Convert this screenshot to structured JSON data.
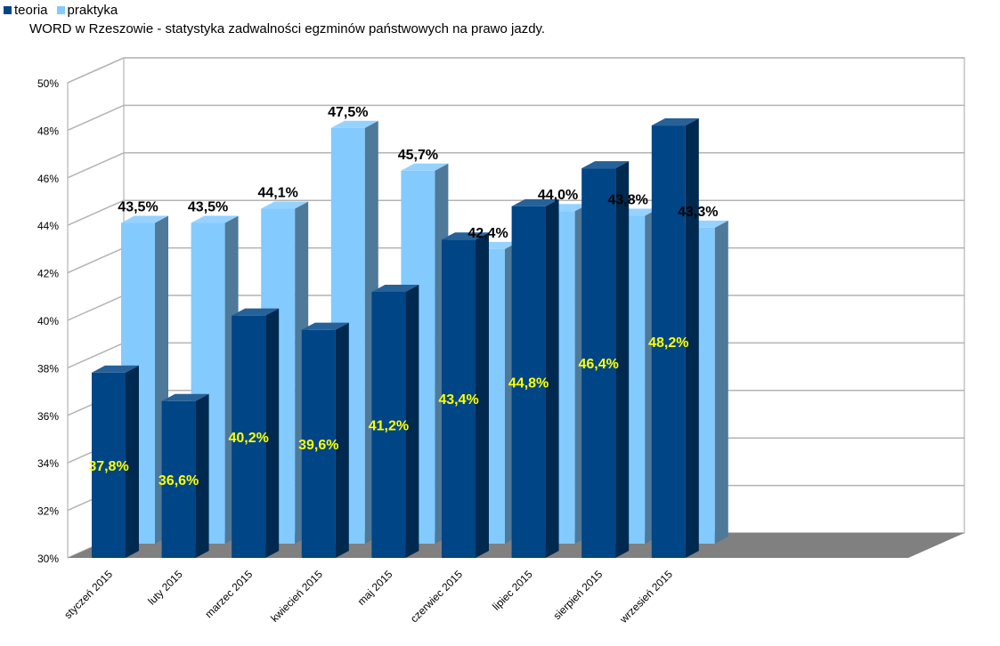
{
  "chart_data": {
    "type": "bar",
    "title": "WORD w Rzeszowie - statystyka zadwalności egzminów państwowych na prawo jazdy.",
    "xlabel": "",
    "ylabel": "",
    "ylim": [
      30,
      50
    ],
    "y_ticks": [
      "30%",
      "32%",
      "34%",
      "36%",
      "38%",
      "40%",
      "42%",
      "44%",
      "46%",
      "48%",
      "50%"
    ],
    "categories": [
      "styczeń 2015",
      "luty 2015",
      "marzec 2015",
      "kwiecień 2015",
      "maj 2015",
      "czerwiec 2015",
      "lipiec 2015",
      "sierpień 2015",
      "wrzesień 2015"
    ],
    "series": [
      {
        "name": "teoria",
        "values": [
          37.8,
          36.6,
          40.2,
          39.6,
          41.2,
          43.4,
          44.8,
          46.4,
          48.2
        ],
        "labels": [
          "37,8%",
          "36,6%",
          "40,2%",
          "39,6%",
          "41,2%",
          "43,4%",
          "44,8%",
          "46,4%",
          "48,2%"
        ],
        "color": "#004586"
      },
      {
        "name": "praktyka",
        "values": [
          43.5,
          43.5,
          44.1,
          47.5,
          45.7,
          42.4,
          44.0,
          43.8,
          43.3
        ],
        "labels": [
          "43,5%",
          "43,5%",
          "44,1%",
          "47,5%",
          "45,7%",
          "42,4%",
          "44,0%",
          "43,8%",
          "43,3%"
        ],
        "color": "#83caff"
      }
    ],
    "legend_position": "top-left",
    "grid": true,
    "three_d": true
  }
}
